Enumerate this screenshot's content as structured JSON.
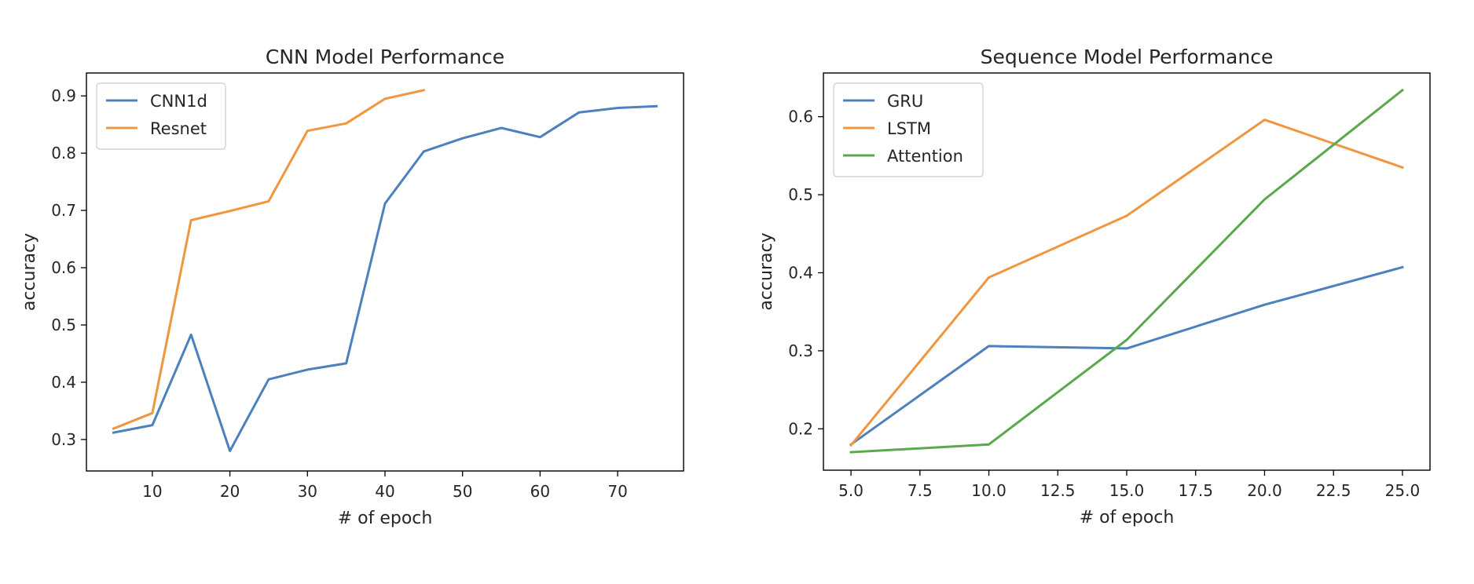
{
  "chart_data": [
    {
      "type": "line",
      "title": "CNN Model Performance",
      "xlabel": "# of epoch",
      "ylabel": "accuracy",
      "xlim": [
        1.5,
        78.5
      ],
      "ylim": [
        0.245,
        0.94
      ],
      "xticks": [
        10,
        20,
        30,
        40,
        50,
        60,
        70
      ],
      "xtick_labels": [
        "10",
        "20",
        "30",
        "40",
        "50",
        "60",
        "70"
      ],
      "yticks": [
        0.3,
        0.4,
        0.5,
        0.6,
        0.7,
        0.8,
        0.9
      ],
      "ytick_labels": [
        "0.3",
        "0.4",
        "0.5",
        "0.6",
        "0.7",
        "0.8",
        "0.9"
      ],
      "grid": false,
      "legend_position": "top-left",
      "series": [
        {
          "name": "CNN1d",
          "color": "#4c81be",
          "x": [
            5,
            10,
            15,
            20,
            25,
            30,
            35,
            40,
            45,
            50,
            55,
            60,
            65,
            70,
            75
          ],
          "y": [
            0.312,
            0.325,
            0.483,
            0.28,
            0.405,
            0.422,
            0.433,
            0.712,
            0.803,
            0.826,
            0.844,
            0.828,
            0.871,
            0.879,
            0.882
          ]
        },
        {
          "name": "Resnet",
          "color": "#f0963f",
          "x": [
            5,
            10,
            15,
            20,
            25,
            30,
            35,
            40,
            45
          ],
          "y": [
            0.319,
            0.346,
            0.683,
            0.699,
            0.716,
            0.839,
            0.852,
            0.895,
            0.91
          ]
        }
      ]
    },
    {
      "type": "line",
      "title": "Sequence Model Performance",
      "xlabel": "# of epoch",
      "ylabel": "accuracy",
      "xlim": [
        4.0,
        26.0
      ],
      "ylim": [
        0.147,
        0.656
      ],
      "xticks": [
        5.0,
        7.5,
        10.0,
        12.5,
        15.0,
        17.5,
        20.0,
        22.5,
        25.0
      ],
      "xtick_labels": [
        "5.0",
        "7.5",
        "10.0",
        "12.5",
        "15.0",
        "17.5",
        "20.0",
        "22.5",
        "25.0"
      ],
      "yticks": [
        0.2,
        0.3,
        0.4,
        0.5,
        0.6
      ],
      "ytick_labels": [
        "0.2",
        "0.3",
        "0.4",
        "0.5",
        "0.6"
      ],
      "grid": false,
      "legend_position": "top-left",
      "series": [
        {
          "name": "GRU",
          "color": "#4c81be",
          "x": [
            5,
            10,
            15,
            20,
            25
          ],
          "y": [
            0.18,
            0.306,
            0.303,
            0.359,
            0.407
          ]
        },
        {
          "name": "LSTM",
          "color": "#f0963f",
          "x": [
            5,
            10,
            15,
            20,
            25
          ],
          "y": [
            0.179,
            0.394,
            0.473,
            0.596,
            0.535
          ]
        },
        {
          "name": "Attention",
          "color": "#5aa84c",
          "x": [
            5,
            10,
            15,
            20,
            25
          ],
          "y": [
            0.17,
            0.18,
            0.314,
            0.494,
            0.634
          ]
        }
      ]
    }
  ]
}
